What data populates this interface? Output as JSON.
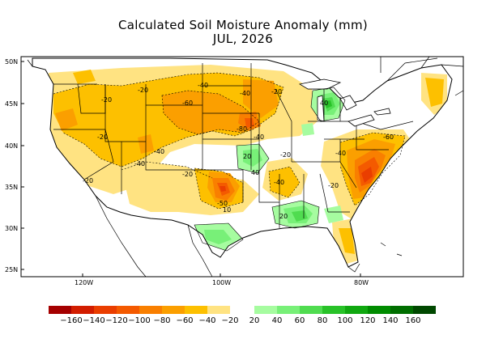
{
  "title": "Calculated Soil Moisture Anomaly (mm)",
  "subtitle": "JUL, 2026",
  "lat_labels": [
    "50N",
    "45N",
    "40N",
    "35N",
    "30N",
    "25N"
  ],
  "lon_labels": [
    "120W",
    "100W",
    "80W"
  ],
  "contour_labels": [
    "-20",
    "-20",
    "-20",
    "-20",
    "-20",
    "-20",
    "-20",
    "-20",
    "-40",
    "-40",
    "-40",
    "-40",
    "-40",
    "-40",
    "-40",
    "-60",
    "-60",
    "-80",
    "-50",
    "20",
    "20",
    "40",
    "40",
    "10"
  ],
  "colorbar": {
    "labels": [
      "−160",
      "−140",
      "−120",
      "−100",
      "−80",
      "−60",
      "−40",
      "−20",
      "20",
      "40",
      "60",
      "80",
      "100",
      "120",
      "140",
      "160"
    ],
    "dry_colors": [
      "#a50000",
      "#d21d00",
      "#ea3e00",
      "#f45a00",
      "#f97f00",
      "#fb9f00",
      "#fdc000",
      "#ffe382"
    ],
    "wet_colors": [
      "#a6fca0",
      "#78f078",
      "#50dc50",
      "#28c228",
      "#10a810",
      "#008c00",
      "#006e00",
      "#004800"
    ]
  }
}
